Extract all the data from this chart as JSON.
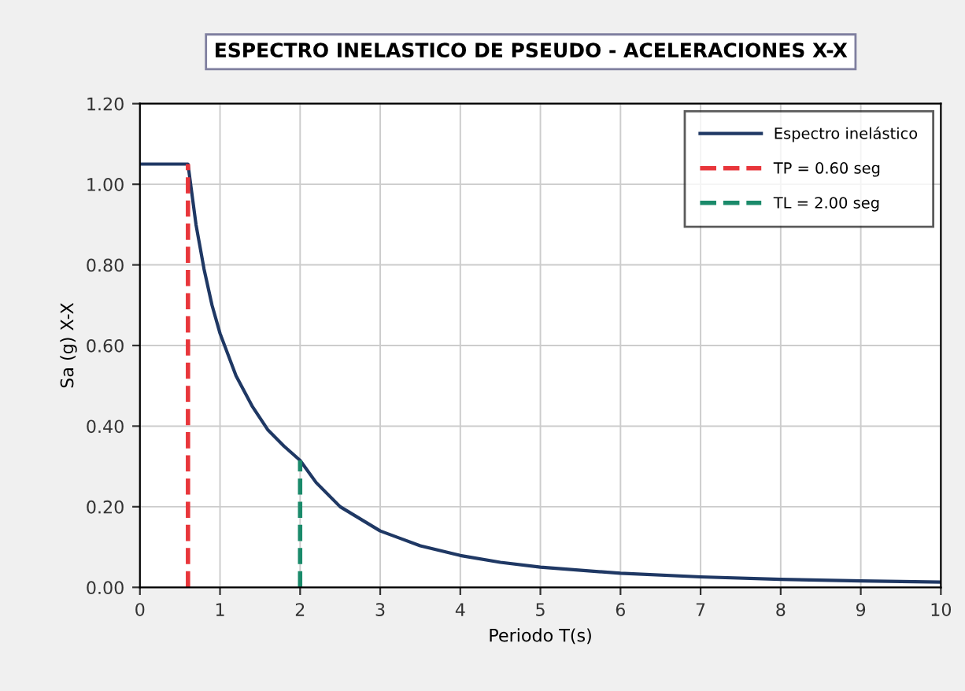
{
  "chart_data": {
    "type": "line",
    "title": "ESPECTRO INELASTICO DE PSEUDO - ACELERACIONES X-X",
    "xlabel": "Periodo T(s)",
    "ylabel": "Sa (g) X-X",
    "xlim": [
      0,
      10
    ],
    "xticks": [
      0,
      1,
      2,
      3,
      4,
      5,
      6,
      7,
      8,
      9,
      10
    ],
    "ylim": [
      0,
      1.2
    ],
    "yticks": [
      {
        "value": 0,
        "label": "0.00"
      },
      {
        "value": 0.2,
        "label": "0.20"
      },
      {
        "value": 0.4,
        "label": "0.40"
      },
      {
        "value": 0.6,
        "label": "0.60"
      },
      {
        "value": 0.8,
        "label": "0.80"
      },
      {
        "value": 1.0,
        "label": "1.00"
      },
      {
        "value": 1.2,
        "label": "1.20"
      }
    ],
    "grid": true,
    "legend": "top right",
    "series": [
      {
        "name": "Espectro inelástico",
        "color": "#1f3864",
        "line_style": "solid",
        "x": [
          0,
          0.6,
          0.7,
          0.8,
          0.9,
          1.0,
          1.2,
          1.4,
          1.6,
          1.8,
          2.0,
          2.2,
          2.5,
          3,
          3.5,
          4,
          4.5,
          5,
          6,
          7,
          8,
          9,
          10
        ],
        "values": [
          1.05,
          1.05,
          0.9,
          0.79,
          0.7,
          0.63,
          0.525,
          0.45,
          0.39,
          0.35,
          0.315,
          0.26,
          0.2,
          0.14,
          0.103,
          0.079,
          0.062,
          0.05,
          0.035,
          0.026,
          0.02,
          0.016,
          0.013
        ]
      },
      {
        "name": "TP = 0.60 seg",
        "color": "#e8353a",
        "line_style": "dashed",
        "x": [
          0.6,
          0.6
        ],
        "values": [
          0,
          1.05
        ]
      },
      {
        "name": "TL = 2.00 seg",
        "color": "#1a8a6a",
        "line_style": "dashed",
        "x": [
          2,
          2
        ],
        "values": [
          0,
          0.315
        ]
      }
    ]
  }
}
